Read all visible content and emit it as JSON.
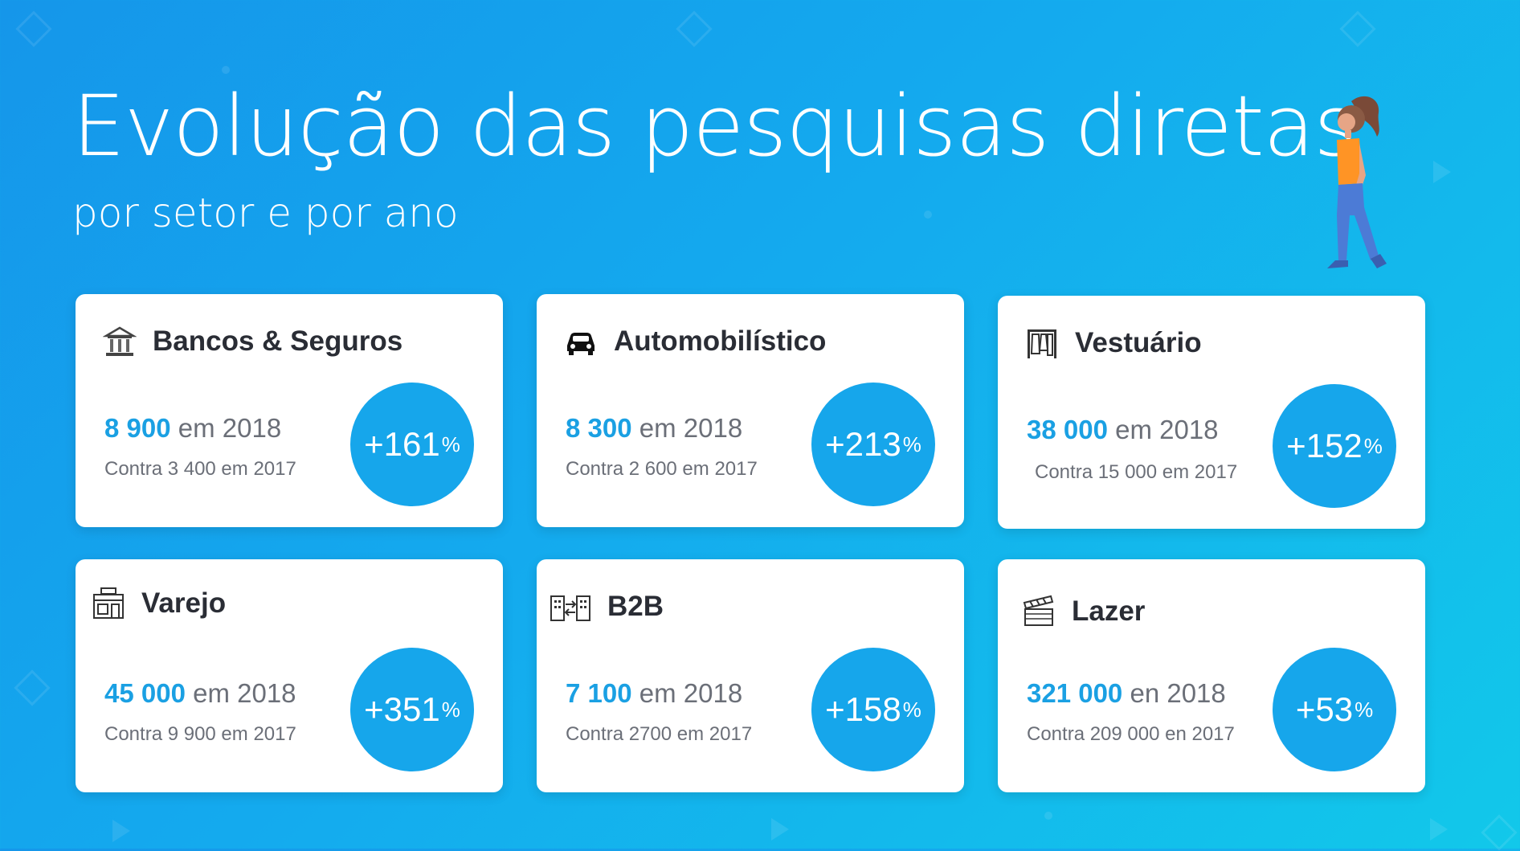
{
  "header": {
    "title": "Evolução das pesquisas diretas",
    "subtitle": "por setor e por ano"
  },
  "cards": [
    {
      "name": "Bancos & Seguros",
      "icon": "bank-icon",
      "value": "8 900",
      "value_suffix": " em 2018",
      "previous": "Contra 3 400 em 2017",
      "growth": "+161",
      "growth_unit": "%"
    },
    {
      "name": "Automobilístico",
      "icon": "car-icon",
      "value": "8 300",
      "value_suffix": " em 2018",
      "previous": "Contra 2 600 em 2017",
      "growth": "+213",
      "growth_unit": "%"
    },
    {
      "name": "Vestuário",
      "icon": "clothing-rack-icon",
      "value": "38 000",
      "value_suffix": " em 2018",
      "previous": "Contra 15 000 em 2017",
      "growth": "+152",
      "growth_unit": "%"
    },
    {
      "name": "Varejo",
      "icon": "store-icon",
      "value": "45 000",
      "value_suffix": " em 2018",
      "previous": "Contra 9 900 em 2017",
      "growth": "+351",
      "growth_unit": "%"
    },
    {
      "name": "B2B",
      "icon": "buildings-exchange-icon",
      "value": "7 100",
      "value_suffix": " em 2018",
      "previous": "Contra 2700 em 2017",
      "growth": "+158",
      "growth_unit": "%"
    },
    {
      "name": "Lazer",
      "icon": "clapperboard-icon",
      "value": "321 000",
      "value_suffix": " en 2018",
      "previous": "Contra 209 000 en 2017",
      "growth": "+53",
      "growth_unit": "%"
    }
  ],
  "colors": {
    "background_start": "#1596ea",
    "background_end": "#12c8ea",
    "accent": "#1aa0e3",
    "badge": "#16a6eb",
    "card_title": "#2a2d35",
    "muted_text": "#6b6f78"
  }
}
